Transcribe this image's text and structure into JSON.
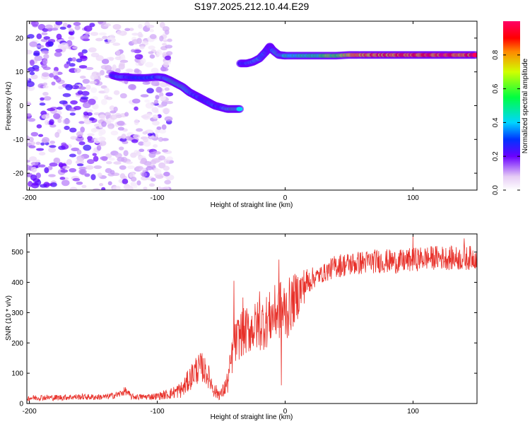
{
  "page_title": "S197.2025.212.10.44.E29",
  "chart_data": [
    {
      "type": "heatmap",
      "title": "S197.2025.212.10.44.E29",
      "xlabel": "Height of straight line (km)",
      "ylabel": "Frequency (Hz)",
      "xlim": [
        -202,
        150
      ],
      "ylim": [
        -25,
        25
      ],
      "x_ticks": [
        -200,
        -100,
        0,
        100
      ],
      "y_ticks": [
        -20,
        -10,
        0,
        10,
        20
      ],
      "colorbar": {
        "label": "Normalized spectral amplitude",
        "range": [
          0.0,
          1.0
        ],
        "ticks": [
          0.0,
          0.2,
          0.4,
          0.6,
          0.8
        ]
      },
      "noise_region": {
        "x_range": [
          -202,
          -90
        ],
        "y_range": [
          -25,
          25
        ],
        "typical_amplitude": 0.15
      },
      "ridge_segments": [
        {
          "x": [
            -135,
            -130,
            -125,
            -120,
            -110,
            -100,
            -95,
            -90,
            -85,
            -80,
            -75,
            -70,
            -65,
            -60,
            -55,
            -50,
            -45,
            -40,
            -35
          ],
          "y": [
            9,
            8.5,
            8.5,
            8.3,
            8.2,
            8.5,
            8.3,
            7.5,
            6.5,
            5.5,
            4,
            3,
            2,
            1,
            0,
            -0.5,
            -1,
            -1,
            -1
          ],
          "amplitude": [
            0.3,
            0.4,
            0.35,
            0.3,
            0.3,
            0.35,
            0.4,
            0.45,
            0.45,
            0.5,
            0.4,
            0.35,
            0.3,
            0.3,
            0.35,
            0.3,
            0.45,
            0.5,
            0.45
          ]
        },
        {
          "x": [
            -35,
            -30,
            -25,
            -20,
            -15,
            -12,
            -10,
            -5,
            0,
            10,
            20,
            30,
            40,
            50,
            60,
            70,
            80,
            90,
            100,
            110,
            120,
            130,
            140,
            150
          ],
          "y": [
            12.5,
            12.5,
            13,
            14,
            16,
            17.5,
            16.5,
            15,
            14.8,
            14.8,
            14.8,
            14.8,
            14.8,
            15,
            15,
            15,
            15,
            15,
            15,
            15,
            15,
            15,
            15,
            15
          ],
          "amplitude": [
            0.3,
            0.35,
            0.4,
            0.4,
            0.35,
            0.3,
            0.35,
            0.45,
            0.45,
            0.45,
            0.5,
            0.55,
            0.6,
            0.75,
            0.8,
            0.85,
            0.85,
            0.88,
            0.9,
            0.88,
            0.9,
            0.9,
            0.88,
            0.9
          ]
        }
      ]
    },
    {
      "type": "line",
      "xlabel": "Height of straight line (km)",
      "ylabel": "SNR (10 * v/v)",
      "xlim": [
        -202,
        150
      ],
      "ylim": [
        0,
        560
      ],
      "x_ticks": [
        -200,
        -100,
        0,
        100
      ],
      "y_ticks": [
        0,
        100,
        200,
        300,
        400,
        500
      ],
      "line_color": "#e8312a",
      "series": [
        {
          "x": [
            -202,
            -190,
            -180,
            -170,
            -160,
            -150,
            -140,
            -130,
            -125,
            -120,
            -110,
            -100,
            -90,
            -80,
            -75,
            -70,
            -65,
            -60,
            -55,
            -50,
            -45,
            -40,
            -35,
            -30,
            -25,
            -20,
            -15,
            -10,
            -5,
            0,
            5,
            10,
            15,
            20,
            25,
            30,
            40,
            50,
            60,
            70,
            80,
            90,
            100,
            110,
            120,
            130,
            140,
            150
          ],
          "values": [
            18,
            20,
            19,
            21,
            22,
            21,
            22,
            30,
            42,
            22,
            22,
            24,
            32,
            48,
            80,
            110,
            120,
            90,
            40,
            30,
            70,
            190,
            230,
            240,
            250,
            260,
            270,
            290,
            310,
            300,
            330,
            360,
            390,
            410,
            420,
            430,
            455,
            460,
            465,
            470,
            470,
            468,
            475,
            480,
            482,
            480,
            478,
            485
          ],
          "noise_amplitude": [
            10,
            10,
            10,
            10,
            10,
            10,
            10,
            12,
            14,
            10,
            10,
            12,
            18,
            30,
            40,
            50,
            50,
            40,
            25,
            20,
            40,
            70,
            80,
            80,
            80,
            90,
            90,
            90,
            100,
            110,
            90,
            80,
            60,
            40,
            30,
            30,
            40,
            40,
            40,
            40,
            40,
            40,
            40,
            40,
            40,
            40,
            40,
            40
          ],
          "spikes": [
            {
              "x": -40,
              "y": 405
            },
            {
              "x": -33,
              "y": 350
            },
            {
              "x": -20,
              "y": 370
            },
            {
              "x": -5,
              "y": 475
            },
            {
              "x": -3,
              "y": 60
            },
            {
              "x": 5,
              "y": 345
            },
            {
              "x": 100,
              "y": 555
            },
            {
              "x": 140,
              "y": 545
            }
          ]
        }
      ]
    }
  ]
}
